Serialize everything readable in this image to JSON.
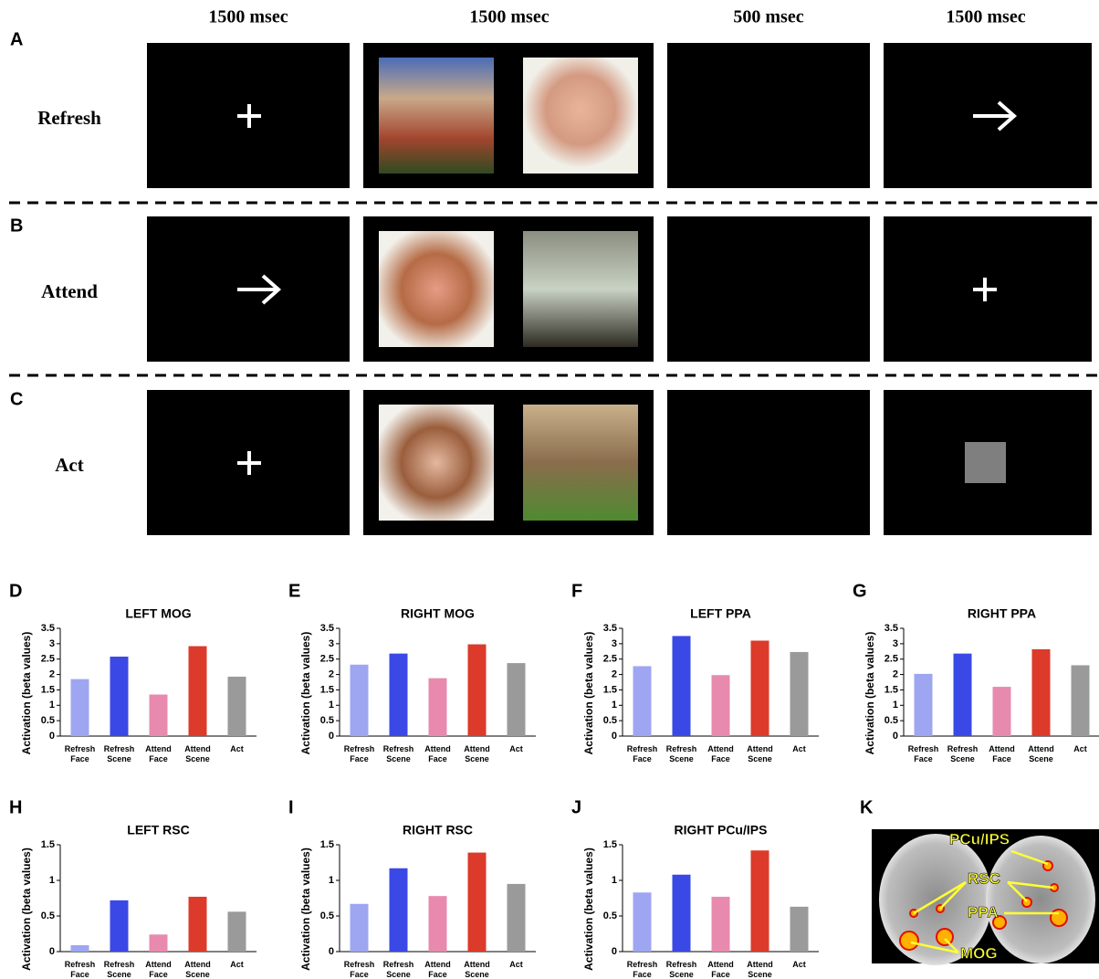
{
  "timings": [
    "1500 msec",
    "1500 msec",
    "500 msec",
    "1500 msec"
  ],
  "rows": [
    {
      "letter": "A",
      "label": "Refresh"
    },
    {
      "letter": "B",
      "label": "Attend"
    },
    {
      "letter": "C",
      "label": "Act"
    }
  ],
  "brain": {
    "panel": "K",
    "labels": [
      "PCu/IPS",
      "RSC",
      "PPA",
      "MOG"
    ]
  },
  "chart_data": [
    {
      "panel": "D",
      "type": "bar",
      "title": "LEFT MOG",
      "ylabel": "Activation (beta values)",
      "categories": [
        "Refresh Face",
        "Refresh Scene",
        "Attend Face",
        "Attend Scene",
        "Act"
      ],
      "values": [
        1.85,
        2.58,
        1.35,
        2.92,
        1.93
      ],
      "colors": [
        "#9ea6f2",
        "#3a48e6",
        "#e88aae",
        "#dc3a2a",
        "#9a9a9a"
      ],
      "ylim": [
        0,
        3.5
      ],
      "yticks": [
        0,
        0.5,
        1,
        1.5,
        2,
        2.5,
        3,
        3.5
      ]
    },
    {
      "panel": "E",
      "type": "bar",
      "title": "RIGHT MOG",
      "ylabel": "Activation (beta values)",
      "categories": [
        "Refresh Face",
        "Refresh Scene",
        "Attend Face",
        "Attend Scene",
        "Act"
      ],
      "values": [
        2.32,
        2.68,
        1.88,
        2.98,
        2.37
      ],
      "colors": [
        "#9ea6f2",
        "#3a48e6",
        "#e88aae",
        "#dc3a2a",
        "#9a9a9a"
      ],
      "ylim": [
        0,
        3.5
      ],
      "yticks": [
        0,
        0.5,
        1,
        1.5,
        2,
        2.5,
        3,
        3.5
      ]
    },
    {
      "panel": "F",
      "type": "bar",
      "title": "LEFT PPA",
      "ylabel": "Activation (beta values)",
      "categories": [
        "Refresh Face",
        "Refresh Scene",
        "Attend Face",
        "Attend Scene",
        "Act"
      ],
      "values": [
        2.27,
        3.25,
        1.98,
        3.1,
        2.73
      ],
      "colors": [
        "#9ea6f2",
        "#3a48e6",
        "#e88aae",
        "#dc3a2a",
        "#9a9a9a"
      ],
      "ylim": [
        0,
        3.5
      ],
      "yticks": [
        0,
        0.5,
        1,
        1.5,
        2,
        2.5,
        3,
        3.5
      ]
    },
    {
      "panel": "G",
      "type": "bar",
      "title": "RIGHT PPA",
      "ylabel": "Activation (beta values)",
      "categories": [
        "Refresh Face",
        "Refresh Scene",
        "Attend Face",
        "Attend Scene",
        "Act"
      ],
      "values": [
        2.02,
        2.68,
        1.6,
        2.82,
        2.3
      ],
      "colors": [
        "#9ea6f2",
        "#3a48e6",
        "#e88aae",
        "#dc3a2a",
        "#9a9a9a"
      ],
      "ylim": [
        0,
        3.5
      ],
      "yticks": [
        0,
        0.5,
        1,
        1.5,
        2,
        2.5,
        3,
        3.5
      ]
    },
    {
      "panel": "H",
      "type": "bar",
      "title": "LEFT RSC",
      "ylabel": "Activation (beta values)",
      "categories": [
        "Refresh Face",
        "Refresh Scene",
        "Attend Face",
        "Attend Scene",
        "Act"
      ],
      "values": [
        0.09,
        0.72,
        0.24,
        0.77,
        0.56
      ],
      "colors": [
        "#9ea6f2",
        "#3a48e6",
        "#e88aae",
        "#dc3a2a",
        "#9a9a9a"
      ],
      "ylim": [
        0,
        1.5
      ],
      "yticks": [
        0,
        0.5,
        1,
        1.5
      ]
    },
    {
      "panel": "I",
      "type": "bar",
      "title": "RIGHT RSC",
      "ylabel": "Activation (beta values)",
      "categories": [
        "Refresh Face",
        "Refresh Scene",
        "Attend Face",
        "Attend Scene",
        "Act"
      ],
      "values": [
        0.67,
        1.17,
        0.78,
        1.39,
        0.95
      ],
      "colors": [
        "#9ea6f2",
        "#3a48e6",
        "#e88aae",
        "#dc3a2a",
        "#9a9a9a"
      ],
      "ylim": [
        0,
        1.5
      ],
      "yticks": [
        0,
        0.5,
        1,
        1.5
      ]
    },
    {
      "panel": "J",
      "type": "bar",
      "title": "RIGHT PCu/IPS",
      "ylabel": "Activation (beta values)",
      "categories": [
        "Refresh Face",
        "Refresh Scene",
        "Attend Face",
        "Attend Scene",
        "Act"
      ],
      "values": [
        0.83,
        1.08,
        0.77,
        1.42,
        0.63
      ],
      "colors": [
        "#9ea6f2",
        "#3a48e6",
        "#e88aae",
        "#dc3a2a",
        "#9a9a9a"
      ],
      "ylim": [
        0,
        1.5
      ],
      "yticks": [
        0,
        0.5,
        1,
        1.5
      ]
    }
  ]
}
